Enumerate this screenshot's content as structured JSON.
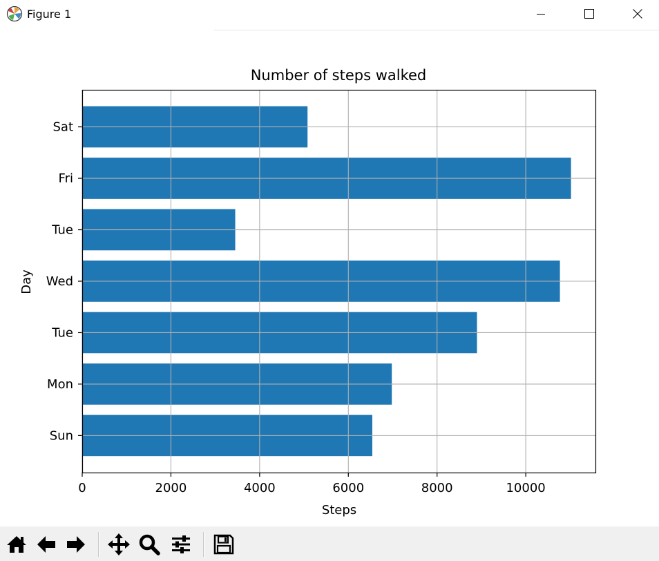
{
  "window": {
    "title": "Figure 1",
    "icons": [
      "matplotlib-logo-icon",
      "minimize-icon",
      "maximize-icon",
      "close-icon"
    ]
  },
  "toolbar": {
    "buttons": [
      "home-icon",
      "back-arrow-icon",
      "forward-arrow-icon",
      "pan-icon",
      "zoom-icon",
      "configure-subplots-icon",
      "save-icon"
    ]
  },
  "chart_data": {
    "type": "bar",
    "orientation": "horizontal",
    "title": "Number of steps walked",
    "xlabel": "Steps",
    "ylabel": "Day",
    "categories": [
      "Sun",
      "Mon",
      "Tue",
      "Wed",
      "Tue",
      "Fri",
      "Sat"
    ],
    "values": [
      6540,
      6980,
      8900,
      10770,
      3450,
      11020,
      5080
    ],
    "xlim": [
      0,
      11571
    ],
    "xticks": [
      0,
      2000,
      4000,
      6000,
      8000,
      10000
    ],
    "xtick_labels": [
      "0",
      "2000",
      "4000",
      "6000",
      "8000",
      "10000"
    ],
    "grid": true,
    "bar_color": "#1f77b4"
  }
}
